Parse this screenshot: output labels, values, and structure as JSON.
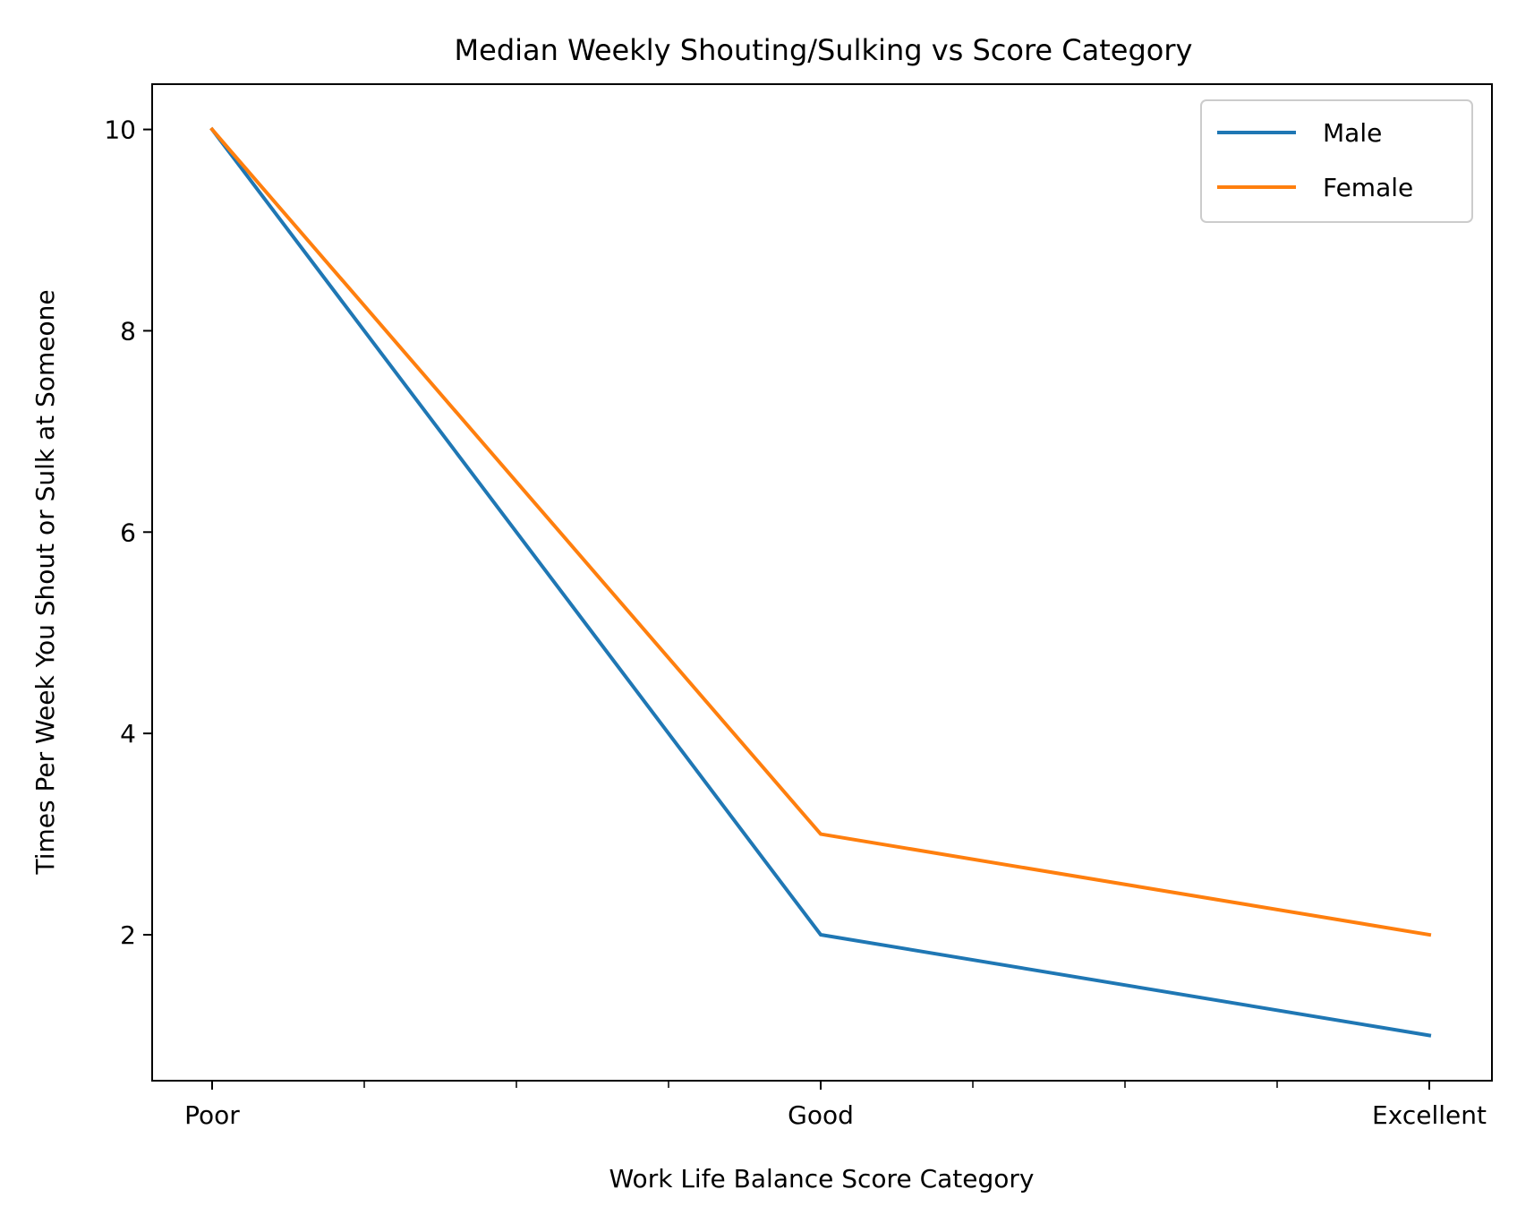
{
  "chart_data": {
    "type": "line",
    "title": "Median Weekly Shouting/Sulking vs Score Category",
    "xlabel": "Work Life Balance Score Category",
    "ylabel": "Times Per Week You Shout or Sulk at Someone",
    "categories": [
      "Poor",
      "Good",
      "Excellent"
    ],
    "yticks": [
      "2",
      "4",
      "6",
      "8",
      "10"
    ],
    "ylim": [
      0.55,
      10.45
    ],
    "minor_x_ticks": true,
    "grid": false,
    "legend_position": "top-right",
    "series": [
      {
        "name": "Male",
        "color": "#1f77b4",
        "values": [
          10,
          2,
          1
        ]
      },
      {
        "name": "Female",
        "color": "#ff7f0e",
        "values": [
          10,
          3,
          2
        ]
      }
    ]
  }
}
